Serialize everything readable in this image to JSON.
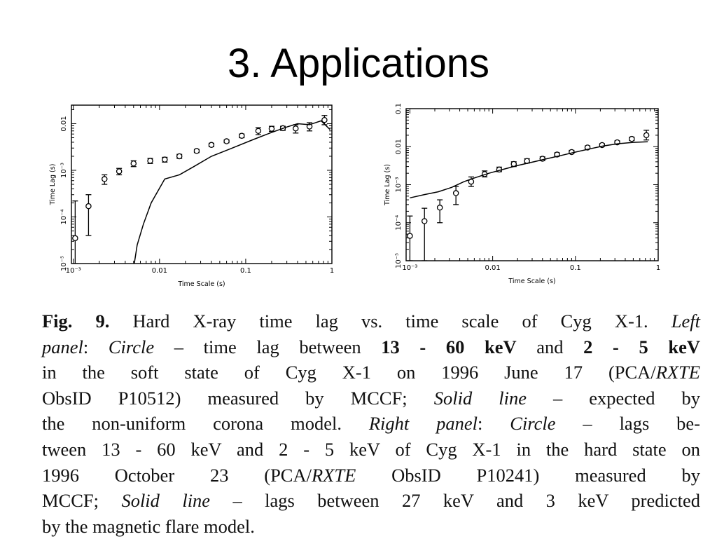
{
  "slide": {
    "title": "3. Applications"
  },
  "chart_data": [
    {
      "type": "scatter",
      "panel": "left",
      "xlabel": "Time Scale (s)",
      "ylabel": "Time Lag (s)",
      "x_scale": "log",
      "y_scale": "log",
      "xlim": [
        0.00095,
        1.0
      ],
      "ylim": [
        1e-05,
        0.025
      ],
      "x_ticks": [
        {
          "value": 0.001,
          "label": "10⁻³"
        },
        {
          "value": 0.01,
          "label": "0.01"
        },
        {
          "value": 0.1,
          "label": "0.1"
        },
        {
          "value": 1,
          "label": "1"
        }
      ],
      "y_ticks": [
        {
          "value": 1e-05,
          "label": "10⁻⁵"
        },
        {
          "value": 0.0001,
          "label": "10⁻⁴"
        },
        {
          "value": 0.001,
          "label": "10⁻³"
        },
        {
          "value": 0.01,
          "label": "0.01"
        }
      ],
      "series": [
        {
          "marker": "circle",
          "x": [
            0.00105,
            0.0015,
            0.0023,
            0.0034,
            0.005,
            0.0078,
            0.0115,
            0.017,
            0.027,
            0.04,
            0.06,
            0.09,
            0.14,
            0.2,
            0.27,
            0.38,
            0.55,
            0.82
          ],
          "y": [
            3.5e-05,
            0.00017,
            0.00065,
            0.00095,
            0.0014,
            0.0016,
            0.0017,
            0.002,
            0.0026,
            0.0035,
            0.0042,
            0.0055,
            0.007,
            0.0078,
            0.008,
            0.0079,
            0.0087,
            0.012
          ],
          "err_low": [
            1e-05,
            4e-05,
            0.0005,
            0.0008,
            0.0012,
            0.0014,
            0.0015,
            0.0018,
            0.0024,
            0.0032,
            0.0039,
            0.005,
            0.0058,
            0.0068,
            0.0072,
            0.0063,
            0.007,
            0.0095
          ],
          "err_high": [
            0.00022,
            0.0003,
            0.0008,
            0.0011,
            0.0016,
            0.0018,
            0.0019,
            0.0022,
            0.0028,
            0.0038,
            0.0045,
            0.006,
            0.0082,
            0.0088,
            0.0088,
            0.0095,
            0.0105,
            0.015
          ]
        },
        {
          "marker": "line",
          "x": [
            0.0051,
            0.0055,
            0.0065,
            0.008,
            0.0115,
            0.017,
            0.025,
            0.04,
            0.07,
            0.12,
            0.2,
            0.3,
            0.4,
            0.55,
            0.75,
            0.95
          ],
          "y": [
            1e-05,
            2.5e-05,
            7e-05,
            0.0002,
            0.00065,
            0.0008,
            0.0012,
            0.002,
            0.003,
            0.0045,
            0.0065,
            0.0085,
            0.01,
            0.0095,
            0.0115,
            0.0075
          ]
        }
      ]
    },
    {
      "type": "scatter",
      "panel": "right",
      "xlabel": "Time Scale (s)",
      "ylabel": "Time Lag (s)",
      "x_scale": "log",
      "y_scale": "log",
      "xlim": [
        0.0009,
        1.0
      ],
      "ylim": [
        1e-05,
        0.1
      ],
      "x_ticks": [
        {
          "value": 0.001,
          "label": "10⁻³"
        },
        {
          "value": 0.01,
          "label": "0.01"
        },
        {
          "value": 0.1,
          "label": "0.1"
        },
        {
          "value": 1,
          "label": "1"
        }
      ],
      "y_ticks": [
        {
          "value": 1e-05,
          "label": "10⁻⁵"
        },
        {
          "value": 0.0001,
          "label": "10⁻⁴"
        },
        {
          "value": 0.001,
          "label": "10⁻³"
        },
        {
          "value": 0.01,
          "label": "0.01"
        },
        {
          "value": 0.1,
          "label": "0.1"
        }
      ],
      "series": [
        {
          "marker": "circle",
          "x": [
            0.001,
            0.0015,
            0.0023,
            0.0036,
            0.0055,
            0.008,
            0.012,
            0.018,
            0.026,
            0.04,
            0.06,
            0.09,
            0.14,
            0.21,
            0.32,
            0.48,
            0.72
          ],
          "y": [
            4.5e-05,
            0.00011,
            0.00025,
            0.0006,
            0.0012,
            0.0019,
            0.0025,
            0.0035,
            0.0042,
            0.0048,
            0.0062,
            0.0072,
            0.0095,
            0.011,
            0.013,
            0.016,
            0.02
          ],
          "err_low": [
            1e-05,
            1e-05,
            0.0001,
            0.0003,
            0.0009,
            0.0016,
            0.0022,
            0.003,
            0.0037,
            0.0043,
            0.0056,
            0.0066,
            0.0087,
            0.0102,
            0.0121,
            0.0145,
            0.015
          ],
          "err_high": [
            0.00015,
            0.00024,
            0.0004,
            0.0009,
            0.0016,
            0.0023,
            0.0029,
            0.004,
            0.0048,
            0.0054,
            0.0069,
            0.008,
            0.0105,
            0.012,
            0.0142,
            0.0178,
            0.027
          ]
        },
        {
          "marker": "line",
          "x": [
            0.001,
            0.0015,
            0.0022,
            0.0032,
            0.0045,
            0.006,
            0.009,
            0.014,
            0.02,
            0.03,
            0.045,
            0.07,
            0.1,
            0.15,
            0.22,
            0.33,
            0.5,
            0.75
          ],
          "y": [
            0.00045,
            0.00055,
            0.00065,
            0.00085,
            0.0012,
            0.0015,
            0.002,
            0.0026,
            0.0032,
            0.0039,
            0.0048,
            0.006,
            0.0072,
            0.0088,
            0.0105,
            0.012,
            0.013,
            0.0135
          ]
        }
      ]
    }
  ],
  "caption": {
    "lines": [
      {
        "parts": [
          {
            "text": "Fig. 9.",
            "b": true
          },
          {
            "text": " Hard X-ray time lag vs. time scale of Cyg X-1. "
          },
          {
            "text": "Left",
            "i": true
          }
        ]
      },
      {
        "parts": [
          {
            "text": "panel",
            "i": true
          },
          {
            "text": ": "
          },
          {
            "text": "Circle",
            "i": true
          },
          {
            "text": " – time lag between "
          },
          {
            "text": "13 - 60 keV",
            "b": true
          },
          {
            "text": " and "
          },
          {
            "text": "2 - 5 keV",
            "b": true
          }
        ]
      },
      {
        "parts": [
          {
            "text": "in the soft state of Cyg X-1 on 1996 June 17 (PCA/"
          },
          {
            "text": "RXTE",
            "i": true
          }
        ]
      },
      {
        "parts": [
          {
            "text": "ObsID P10512) measured by MCCF; "
          },
          {
            "text": "Solid line",
            "i": true
          },
          {
            "text": " – expected by"
          }
        ]
      },
      {
        "parts": [
          {
            "text": "the non-uniform corona model. "
          },
          {
            "text": "Right panel",
            "i": true
          },
          {
            "text": ": "
          },
          {
            "text": "Circle",
            "i": true
          },
          {
            "text": " – lags be-"
          }
        ]
      },
      {
        "parts": [
          {
            "text": "tween 13 - 60 keV and 2 - 5 keV of Cyg X-1 in the hard state on"
          }
        ]
      },
      {
        "parts": [
          {
            "text": "1996 October 23 (PCA/"
          },
          {
            "text": "RXTE",
            "i": true
          },
          {
            "text": " ObsID P10241) measured by"
          }
        ]
      },
      {
        "parts": [
          {
            "text": "MCCF; "
          },
          {
            "text": "Solid line",
            "i": true
          },
          {
            "text": " – lags between 27 keV and 3 keV predicted"
          }
        ]
      },
      {
        "parts": [
          {
            "text": "by the magnetic flare model."
          }
        ]
      }
    ]
  }
}
